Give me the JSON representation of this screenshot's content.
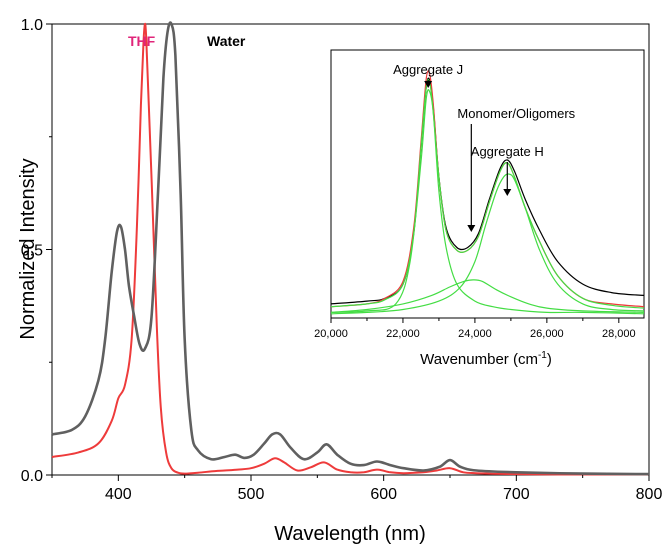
{
  "chart_data": [
    {
      "type": "line",
      "xlabel": "Wavelength (nm)",
      "ylabel": "Normalized Intensity",
      "xlim": [
        350,
        800
      ],
      "ylim": [
        0,
        1.0
      ],
      "x_ticks": [
        400,
        500,
        600,
        700,
        800
      ],
      "y_ticks": [
        0.0,
        0.5,
        1.0
      ],
      "x_tick_labels": [
        "400",
        "500",
        "600",
        "700",
        "800"
      ],
      "y_tick_labels": [
        "0.0",
        "0.5",
        "1.0"
      ],
      "grid": false,
      "series": [
        {
          "name": "THF",
          "color": "#ee3b3b",
          "label_color": "#e0257a",
          "x": [
            350,
            370,
            385,
            395,
            400,
            405,
            410,
            414,
            417,
            419,
            420,
            421,
            423,
            426,
            429,
            432,
            436,
            440,
            445,
            450,
            460,
            470,
            480,
            490,
            500,
            510,
            518,
            525,
            535,
            545,
            555,
            565,
            575,
            585,
            595,
            605,
            615,
            630,
            640,
            650,
            660,
            670,
            700,
            750,
            800
          ],
          "y": [
            0.04,
            0.05,
            0.07,
            0.12,
            0.17,
            0.2,
            0.3,
            0.55,
            0.82,
            0.96,
            1.0,
            0.97,
            0.82,
            0.58,
            0.33,
            0.15,
            0.05,
            0.015,
            0.005,
            0.003,
            0.005,
            0.008,
            0.01,
            0.012,
            0.015,
            0.025,
            0.037,
            0.028,
            0.01,
            0.017,
            0.028,
            0.012,
            0.006,
            0.006,
            0.012,
            0.006,
            0.004,
            0.006,
            0.01,
            0.015,
            0.006,
            0.004,
            0.002,
            0.001,
            0.001
          ]
        },
        {
          "name": "Water",
          "color": "#606060",
          "label_color": "#000000",
          "x": [
            350,
            365,
            375,
            385,
            390,
            395,
            399,
            402,
            405,
            408,
            412,
            416,
            420,
            425,
            430,
            434,
            437,
            440,
            443,
            447,
            450,
            455,
            460,
            470,
            480,
            488,
            495,
            502,
            510,
            516,
            522,
            530,
            540,
            550,
            557,
            565,
            575,
            585,
            595,
            605,
            615,
            630,
            642,
            650,
            658,
            670,
            700,
            750,
            800
          ],
          "y": [
            0.09,
            0.1,
            0.13,
            0.21,
            0.3,
            0.45,
            0.54,
            0.55,
            0.5,
            0.42,
            0.35,
            0.29,
            0.28,
            0.35,
            0.63,
            0.88,
            0.98,
            1.0,
            0.93,
            0.62,
            0.3,
            0.1,
            0.055,
            0.035,
            0.04,
            0.045,
            0.038,
            0.045,
            0.07,
            0.09,
            0.09,
            0.06,
            0.035,
            0.05,
            0.068,
            0.045,
            0.025,
            0.022,
            0.03,
            0.022,
            0.015,
            0.01,
            0.018,
            0.033,
            0.018,
            0.01,
            0.006,
            0.003,
            0.002
          ]
        }
      ]
    },
    {
      "type": "line",
      "title": "",
      "xlabel": "Wavenumber (cm",
      "xlabel_sup": "-1",
      "xlabel_close": ")",
      "xlim": [
        20000,
        28700
      ],
      "ylim": [
        0,
        0.95
      ],
      "x_ticks": [
        20000,
        22000,
        24000,
        26000,
        28000
      ],
      "x_tick_labels": [
        "20,000",
        "22,000",
        "24,000",
        "26,000",
        "28,000"
      ],
      "grid": false,
      "annotations": [
        {
          "text": "Aggregate J",
          "x": 22700
        },
        {
          "text": "Monomer/Oligomers",
          "x": 23900
        },
        {
          "text": "Aggregate H",
          "x": 24900
        }
      ],
      "series": [
        {
          "name": "",
          "color": "#000000",
          "x": [
            20000,
            21000,
            21500,
            22000,
            22300,
            22500,
            22650,
            22750,
            22850,
            23000,
            23200,
            23500,
            23800,
            24100,
            24400,
            24700,
            24900,
            25100,
            25400,
            25800,
            26300,
            27000,
            27800,
            28700
          ],
          "y": [
            0.05,
            0.06,
            0.07,
            0.12,
            0.3,
            0.6,
            0.82,
            0.84,
            0.74,
            0.5,
            0.32,
            0.25,
            0.25,
            0.3,
            0.42,
            0.53,
            0.56,
            0.52,
            0.42,
            0.31,
            0.2,
            0.12,
            0.09,
            0.08
          ]
        },
        {
          "name": "",
          "color": "#ee3b3b",
          "x": [
            20000,
            21000,
            21500,
            22000,
            22300,
            22500,
            22650,
            22750,
            22850,
            23000,
            23200,
            23500,
            23800,
            24100,
            24400,
            24700,
            24900,
            25100,
            25400,
            25800,
            26300,
            27000,
            27800,
            28700
          ],
          "y": [
            0.04,
            0.05,
            0.07,
            0.13,
            0.32,
            0.62,
            0.85,
            0.86,
            0.75,
            0.5,
            0.31,
            0.24,
            0.24,
            0.29,
            0.41,
            0.52,
            0.55,
            0.5,
            0.39,
            0.27,
            0.15,
            0.07,
            0.05,
            0.04
          ]
        },
        {
          "name": "",
          "color": "#44dd44",
          "x": [
            20000,
            21000,
            21500,
            22000,
            22300,
            22500,
            22650,
            22750,
            22850,
            23000,
            23200,
            23500,
            23800,
            24100,
            24400,
            24700,
            24900,
            25100,
            25400,
            25800,
            26300,
            27000,
            27800,
            28700
          ],
          "y": [
            0.04,
            0.05,
            0.065,
            0.12,
            0.3,
            0.6,
            0.82,
            0.83,
            0.72,
            0.5,
            0.31,
            0.24,
            0.24,
            0.29,
            0.41,
            0.52,
            0.55,
            0.5,
            0.39,
            0.27,
            0.15,
            0.07,
            0.045,
            0.035
          ]
        },
        {
          "name": "",
          "color": "#44dd44",
          "x": [
            20000,
            21000,
            21800,
            22200,
            22500,
            22650,
            22750,
            22850,
            23000,
            23200,
            23500,
            24000,
            24500,
            25000,
            26000,
            27000,
            28700
          ],
          "y": [
            0.02,
            0.025,
            0.05,
            0.2,
            0.55,
            0.78,
            0.8,
            0.72,
            0.45,
            0.25,
            0.12,
            0.06,
            0.04,
            0.03,
            0.02,
            0.02,
            0.015
          ]
        },
        {
          "name": "",
          "color": "#44dd44",
          "x": [
            20000,
            21000,
            22000,
            22800,
            23300,
            23700,
            23950,
            24200,
            24600,
            25000,
            25500,
            26000,
            27000,
            28700
          ],
          "y": [
            0.02,
            0.03,
            0.05,
            0.08,
            0.11,
            0.13,
            0.135,
            0.13,
            0.1,
            0.075,
            0.05,
            0.035,
            0.025,
            0.02
          ]
        },
        {
          "name": "",
          "color": "#44dd44",
          "x": [
            20000,
            21000,
            22000,
            23000,
            23600,
            24000,
            24300,
            24600,
            24800,
            24950,
            25100,
            25400,
            25800,
            26300,
            27000,
            27800,
            28700
          ],
          "y": [
            0.015,
            0.02,
            0.03,
            0.06,
            0.11,
            0.2,
            0.33,
            0.45,
            0.5,
            0.51,
            0.49,
            0.39,
            0.24,
            0.12,
            0.05,
            0.03,
            0.025
          ]
        }
      ]
    }
  ]
}
